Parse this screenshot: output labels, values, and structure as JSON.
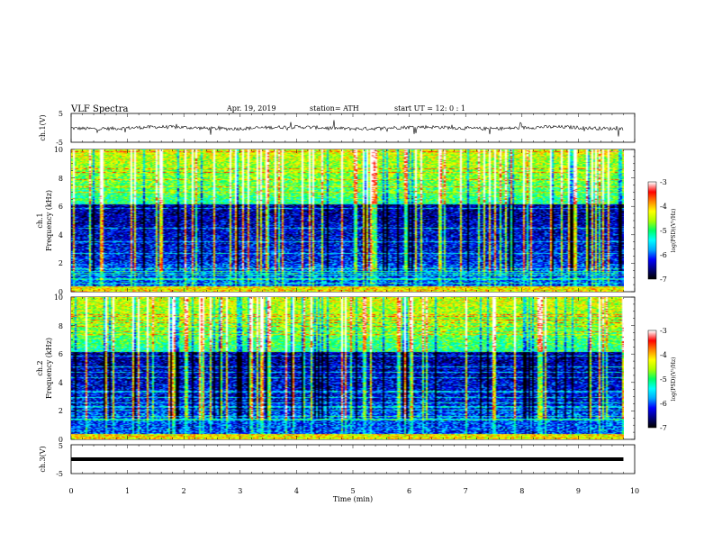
{
  "header": {
    "title": "VLF  Spectra",
    "date": "Apr. 19, 2019",
    "station": "station= ATH",
    "start": "start  UT  =    12: 0   : 1"
  },
  "chart_data": {
    "type": "heatmap",
    "x_axis": {
      "label": "Time  (min)",
      "range": [
        0,
        10
      ],
      "ticks": [
        "0",
        "1",
        "2",
        "3",
        "4",
        "5",
        "6",
        "7",
        "8",
        "9",
        "10"
      ]
    },
    "panels": [
      {
        "id": "ch1-waveform",
        "ylabel": "ch.1(V)",
        "ylim": [
          -5,
          5
        ],
        "ticks": [
          "5",
          "-5"
        ],
        "type": "line"
      },
      {
        "id": "ch1-spectrogram",
        "ylabel_top": "ch.1",
        "ylabel": "Frequency  (kHz)",
        "ylim": [
          0,
          10
        ],
        "ticks": [
          "10",
          "8",
          "6",
          "4",
          "2",
          "0"
        ],
        "type": "heatmap",
        "colorbar": {
          "label": "log(PSD)(V²/Hz)",
          "range": [
            -7,
            -3
          ],
          "ticks": [
            "-3",
            "-4",
            "-5",
            "-6",
            "-7"
          ]
        }
      },
      {
        "id": "ch2-spectrogram",
        "ylabel_top": "ch.2",
        "ylabel": "Frequency  (kHz)",
        "ylim": [
          0,
          10
        ],
        "ticks": [
          "10",
          "8",
          "6",
          "4",
          "2",
          "0"
        ],
        "type": "heatmap",
        "colorbar": {
          "label": "log(PSD)(V²/Hz)",
          "range": [
            -7,
            -3
          ],
          "ticks": [
            "-3",
            "-4",
            "-5",
            "-6",
            "-7"
          ]
        }
      },
      {
        "id": "ch3-waveform",
        "ylabel": "ch.3(V)",
        "ylim": [
          -5,
          5
        ],
        "ticks": [
          "5",
          "-5"
        ],
        "type": "line",
        "flat_value": 0
      }
    ],
    "data_end_min": 9.8,
    "colormap": [
      "#000000",
      "#000080",
      "#0000ff",
      "#00aaff",
      "#00ffff",
      "#00ff66",
      "#aaff00",
      "#ffff00",
      "#ff8800",
      "#ff0000",
      "#ffffff"
    ]
  }
}
